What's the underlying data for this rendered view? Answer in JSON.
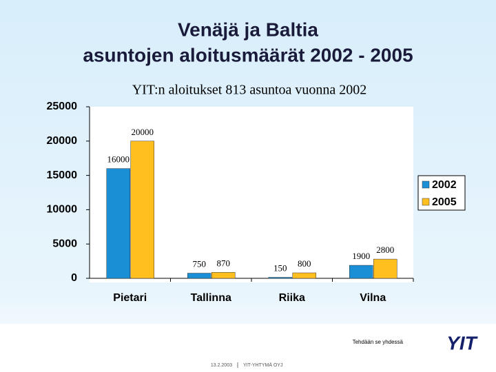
{
  "chart_data": {
    "type": "bar",
    "title": [
      "Venäjä ja Baltia",
      "asuntojen aloitusmäärät 2002 - 2005"
    ],
    "subtitle": "YIT:n aloitukset 813 asuntoa vuonna 2002",
    "categories": [
      "Pietari",
      "Tallinna",
      "Riika",
      "Vilna"
    ],
    "series": [
      {
        "name": "2002",
        "color": "#1a8fd6",
        "values": [
          16000,
          750,
          150,
          1900
        ]
      },
      {
        "name": "2005",
        "color": "#ffbf1f",
        "values": [
          20000,
          870,
          800,
          2800
        ]
      }
    ],
    "ylim": [
      0,
      25000
    ],
    "yticks": [
      0,
      5000,
      10000,
      15000,
      20000,
      25000
    ],
    "legend": "right",
    "grid": false
  },
  "footer": {
    "slogan": "Tehdään se yhdessä",
    "logo": "YIT",
    "date": "13.2.2003",
    "company": "YIT-YHTYMÄ OYJ"
  }
}
